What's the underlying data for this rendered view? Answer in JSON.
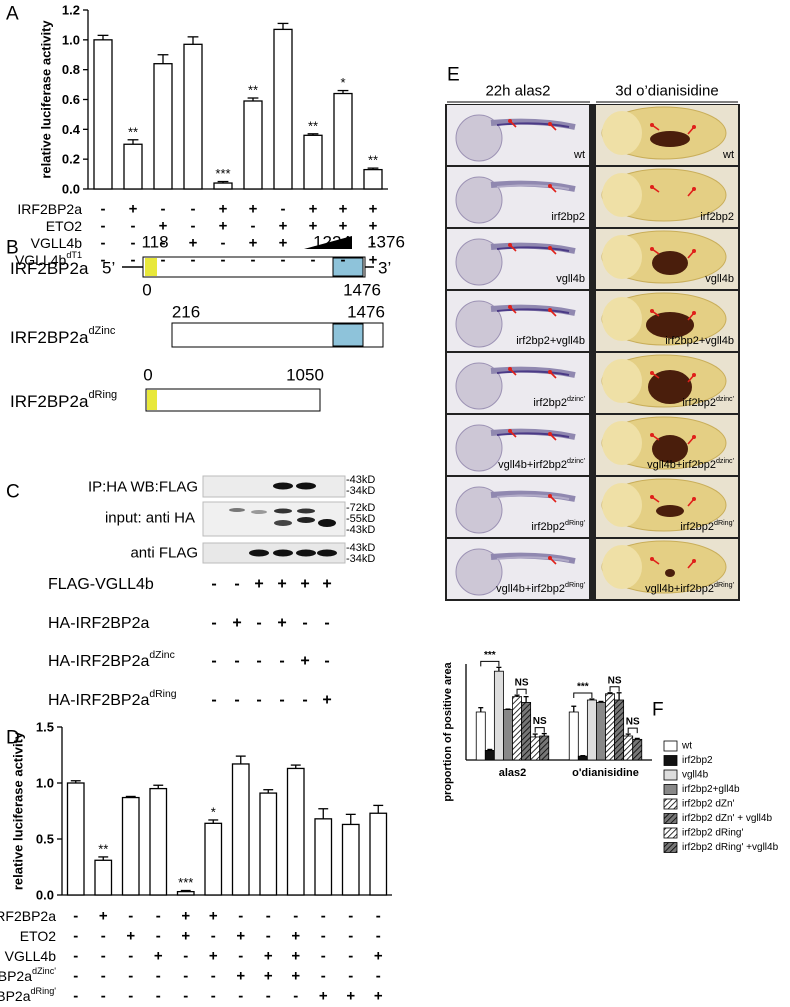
{
  "panel_labels": [
    "A",
    "B",
    "C",
    "D",
    "E",
    "F"
  ],
  "chart_data": [
    {
      "type": "bar",
      "y_label": "relative luciferase activity",
      "values": [
        1.0,
        0.3,
        0.84,
        0.97,
        0.04,
        0.59,
        1.07,
        0.36,
        0.64,
        0.13
      ],
      "errors": [
        0.03,
        0.03,
        0.06,
        0.05,
        0.01,
        0.02,
        0.04,
        0.01,
        0.02,
        0.01
      ],
      "significance": [
        null,
        "**",
        null,
        null,
        "***",
        "**",
        null,
        "**",
        "*",
        "**"
      ],
      "ylim": [
        0,
        1.2
      ],
      "yticks": [
        {
          "value": 0,
          "label": "0.0"
        },
        0.2,
        0.4,
        0.6,
        0.8,
        {
          "value": 1,
          "label": "1.0"
        },
        1.2
      ],
      "color": "#ffffff",
      "conditions": [
        {
          "label": {
            "text": "IRF2BP2a"
          },
          "signs": [
            "-",
            "+",
            "-",
            "-",
            "+",
            "+",
            "-",
            "+",
            "+",
            "+"
          ]
        },
        {
          "label": {
            "text": "ETO2"
          },
          "signs": [
            "-",
            "-",
            "+",
            "-",
            "+",
            "-",
            "+",
            "+",
            "+",
            "+"
          ]
        },
        {
          "label": {
            "text": "VGLL4b"
          },
          "signs": [
            "-",
            "-",
            "-",
            "+",
            "-",
            "+",
            "+",
            null,
            null,
            "-"
          ]
        },
        {
          "label": {
            "text": "VGLL4b",
            "sup": "dT1"
          },
          "signs": [
            "-",
            "-",
            "-",
            "-",
            "-",
            "-",
            "-",
            "-",
            "-",
            "+"
          ]
        }
      ]
    },
    {
      "type": "bar",
      "y_label": "relative luciferase activity",
      "values": [
        1.0,
        0.31,
        0.87,
        0.95,
        0.03,
        0.64,
        1.17,
        0.91,
        1.13,
        0.68,
        0.63,
        0.73
      ],
      "errors": [
        0.02,
        0.03,
        0.01,
        0.03,
        0.01,
        0.03,
        0.07,
        0.03,
        0.03,
        0.09,
        0.09,
        0.07
      ],
      "significance": [
        null,
        "**",
        null,
        null,
        "***",
        "*",
        null,
        null,
        null,
        null,
        null,
        null
      ],
      "ylim": [
        0,
        1.5
      ],
      "yticks": [
        {
          "value": 0,
          "label": "0.0"
        },
        0.5,
        {
          "value": 1,
          "label": "1.0"
        },
        1.5
      ],
      "color": "#ffffff",
      "conditions": [
        {
          "label": {
            "text": "IRF2BP2a"
          },
          "signs": [
            "-",
            "+",
            "-",
            "-",
            "+",
            "+",
            "-",
            "-",
            "-",
            "-",
            "-",
            "-"
          ]
        },
        {
          "label": {
            "text": "ETO2"
          },
          "signs": [
            "-",
            "-",
            "+",
            "-",
            "+",
            "-",
            "+",
            "-",
            "+",
            "-",
            "-",
            "-"
          ]
        },
        {
          "label": {
            "text": "VGLL4b"
          },
          "signs": [
            "-",
            "-",
            "-",
            "+",
            "-",
            "+",
            "-",
            "+",
            "+",
            "-",
            "-",
            "+"
          ]
        },
        {
          "label": {
            "text": "IRF2BP2a",
            "sup": "dZinc'"
          },
          "signs": [
            "-",
            "-",
            "-",
            "-",
            "-",
            "-",
            "+",
            "+",
            "+",
            "-",
            "-",
            "-"
          ]
        },
        {
          "label": {
            "text": "IRF2BP2a",
            "sup": "dRing'"
          },
          "signs": [
            "-",
            "-",
            "-",
            "-",
            "-",
            "-",
            "-",
            "-",
            "-",
            "+",
            "+",
            "+"
          ]
        }
      ]
    },
    {
      "type": "grouped_bar",
      "y_label": "proportion of positive area",
      "categories": [
        "alas2",
        "o'dianisidine"
      ],
      "ylim": [
        0,
        2
      ],
      "series": [
        {
          "name": "wt",
          "color": "#ffffff",
          "hatch": false,
          "values": [
            1.0,
            1.0
          ],
          "errors": [
            0.09,
            0.12
          ]
        },
        {
          "name": "irf2bp2",
          "color": "#111111",
          "hatch": false,
          "values": [
            0.2,
            0.08
          ],
          "errors": [
            0.02,
            0.01
          ]
        },
        {
          "name": "vgll4b",
          "color": "#dddddd",
          "hatch": false,
          "values": [
            1.85,
            1.25
          ],
          "errors": [
            0.08,
            0.02
          ]
        },
        {
          "name": "irf2bp2+gll4b",
          "color": "#888888",
          "hatch": false,
          "values": [
            1.05,
            1.2
          ],
          "errors": [
            0.01,
            0.02
          ]
        },
        {
          "name": "irf2bp2 dZn'",
          "color": "#ffffff",
          "hatch": true,
          "values": [
            1.32,
            1.38
          ],
          "errors": [
            0.03,
            0.02
          ]
        },
        {
          "name": "irf2bp2 dZn' + vgll4b",
          "color": "#777777",
          "hatch": true,
          "values": [
            1.2,
            1.25
          ],
          "errors": [
            0.12,
            0.15
          ]
        },
        {
          "name": "irf2bp2 dRing'",
          "color": "#ffffff",
          "hatch": true,
          "values": [
            0.48,
            0.5
          ],
          "errors": [
            0.06,
            0.04
          ]
        },
        {
          "name": "irf2bp2 dRing' +vgll4b",
          "color": "#777777",
          "hatch": true,
          "values": [
            0.5,
            0.43
          ],
          "errors": [
            0.05,
            0.02
          ]
        }
      ],
      "annotations": [
        "***",
        "NS",
        "NS",
        "***",
        "NS",
        "NS"
      ]
    }
  ],
  "diagram": {
    "constructs": [
      {
        "label": {
          "text": "IRF2BP2a"
        },
        "ends": [
          "5’",
          "3’"
        ],
        "numbers": [
          118,
          1224,
          1376,
          0,
          1476
        ]
      },
      {
        "label": {
          "text": "IRF2BP2a",
          "sup": "dZinc"
        },
        "numbers": [
          216,
          1476
        ]
      },
      {
        "label": {
          "text": "IRF2BP2a",
          "sup": "dRing"
        },
        "numbers": [
          0,
          1050
        ]
      }
    ]
  },
  "blot": {
    "panels": [
      {
        "label": "IP:HA WB:FLAG",
        "markers": [
          "-43kD",
          "-34kD"
        ]
      },
      {
        "label": "input: anti HA",
        "markers": [
          "-72kD",
          "-55kD",
          "-43kD"
        ]
      },
      {
        "label": "anti FLAG",
        "markers": [
          "-43kD",
          "-34kD"
        ]
      }
    ],
    "rows": [
      {
        "label": {
          "text": "FLAG-VGLL4b"
        },
        "signs": [
          "-",
          "-",
          "+",
          "+",
          "+",
          "+"
        ]
      },
      {
        "label": {
          "text": "HA-IRF2BP2a"
        },
        "signs": [
          "-",
          "+",
          "-",
          "+",
          "-",
          "-"
        ]
      },
      {
        "label": {
          "text": "HA-IRF2BP2a",
          "sup": "dZinc"
        },
        "signs": [
          "-",
          "-",
          "-",
          "-",
          "+",
          "-"
        ]
      },
      {
        "label": {
          "text": "HA-IRF2BP2a",
          "sup": "dRing"
        },
        "signs": [
          "-",
          "-",
          "-",
          "-",
          "-",
          "+"
        ]
      }
    ]
  },
  "images": {
    "headers": [
      "22h alas2",
      "3d o’dianisidine"
    ],
    "labels": [
      {
        "text": "wt"
      },
      {
        "text": "irf2bp2"
      },
      {
        "text": "vgll4b"
      },
      {
        "text": "irf2bp2+vgll4b"
      },
      {
        "text": "irf2bp2",
        "sup": "dzinc'"
      },
      {
        "text": "vgll4b+irf2bp2",
        "sup": "dzinc'"
      },
      {
        "text": "irf2bp2",
        "sup": "dRing'"
      },
      {
        "text": "vgll4b+irf2bp2",
        "sup": "dRing'"
      }
    ]
  }
}
